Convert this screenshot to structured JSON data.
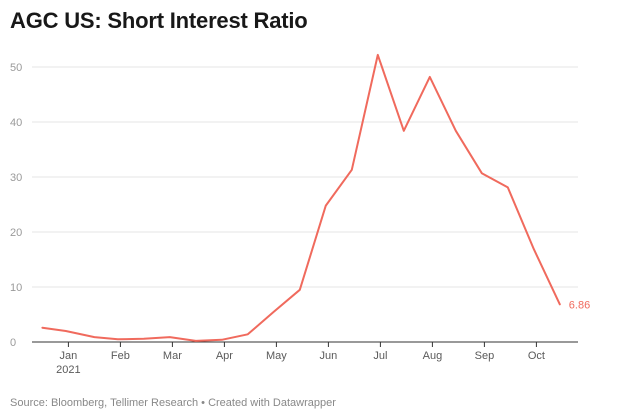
{
  "title": "AGC US: Short Interest Ratio",
  "footer": {
    "source": "Source: Bloomberg, Tellimer Research",
    "separator": " • ",
    "credit": "Created with Datawrapper"
  },
  "chart_data": {
    "type": "line",
    "title": "AGC US: Short Interest Ratio",
    "xlabel": "",
    "ylabel": "",
    "ylim": [
      0,
      50
    ],
    "y_ticks": [
      0,
      10,
      20,
      30,
      40,
      50
    ],
    "x_tick_labels": [
      {
        "label": "Jan",
        "sublabel": "2021",
        "x": 1.0
      },
      {
        "label": "Feb",
        "x": 2.0
      },
      {
        "label": "Mar",
        "x": 3.0
      },
      {
        "label": "Apr",
        "x": 4.0
      },
      {
        "label": "May",
        "x": 5.0
      },
      {
        "label": "Jun",
        "x": 6.0
      },
      {
        "label": "Jul",
        "x": 7.0
      },
      {
        "label": "Aug",
        "x": 8.0
      },
      {
        "label": "Sep",
        "x": 9.0
      },
      {
        "label": "Oct",
        "x": 10.0
      }
    ],
    "xlim": [
      0.3,
      10.8
    ],
    "grid": true,
    "line_color": "#f06a5d",
    "end_label": "6.86",
    "series": [
      {
        "points": [
          {
            "x": 0.5,
            "y": 2.6
          },
          {
            "x": 0.95,
            "y": 2.0
          },
          {
            "x": 1.5,
            "y": 0.9
          },
          {
            "x": 1.95,
            "y": 0.5
          },
          {
            "x": 2.45,
            "y": 0.6
          },
          {
            "x": 2.95,
            "y": 0.9
          },
          {
            "x": 3.45,
            "y": 0.2
          },
          {
            "x": 3.95,
            "y": 0.4
          },
          {
            "x": 4.45,
            "y": 1.4
          },
          {
            "x": 4.95,
            "y": 5.5
          },
          {
            "x": 5.45,
            "y": 9.5
          },
          {
            "x": 5.95,
            "y": 24.8
          },
          {
            "x": 6.45,
            "y": 31.3
          },
          {
            "x": 6.95,
            "y": 52.2
          },
          {
            "x": 7.45,
            "y": 38.4
          },
          {
            "x": 7.95,
            "y": 48.2
          },
          {
            "x": 8.45,
            "y": 38.4
          },
          {
            "x": 8.95,
            "y": 30.7
          },
          {
            "x": 9.45,
            "y": 28.1
          },
          {
            "x": 9.95,
            "y": 16.9
          },
          {
            "x": 10.45,
            "y": 6.86
          }
        ]
      }
    ]
  }
}
